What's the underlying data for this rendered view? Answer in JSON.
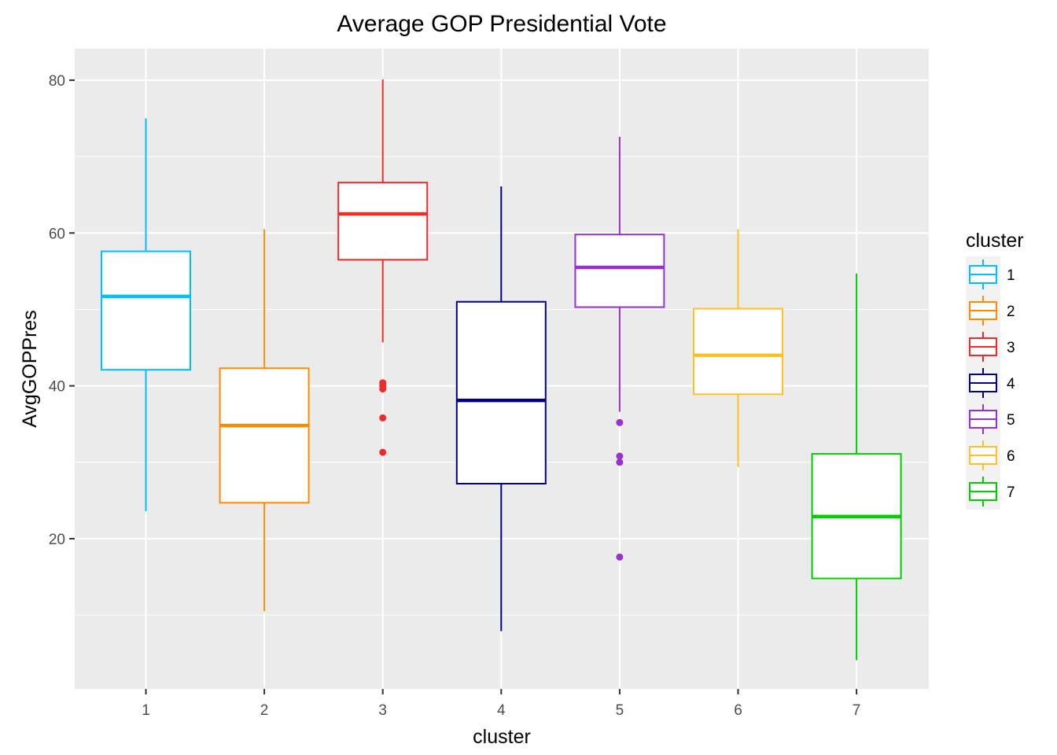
{
  "chart_data": {
    "type": "boxplot",
    "title": "Average GOP Presidential Vote",
    "xlabel": "cluster",
    "ylabel": "AvgGOPPres",
    "categories": [
      "1",
      "2",
      "3",
      "4",
      "5",
      "6",
      "7"
    ],
    "ylim": [
      0,
      80
    ],
    "y_ticks": [
      20,
      40,
      60,
      80
    ],
    "grid": true,
    "legend": {
      "title": "cluster",
      "position": "right",
      "entries": [
        "1",
        "2",
        "3",
        "4",
        "5",
        "6",
        "7"
      ]
    },
    "series": [
      {
        "name": "1",
        "color": "#00BFFF",
        "whisker_low": 23.6,
        "q1": 42.1,
        "median": 51.7,
        "q3": 57.6,
        "whisker_high": 75.0,
        "outliers": []
      },
      {
        "name": "2",
        "color": "#FF8C00",
        "whisker_low": 10.5,
        "q1": 24.7,
        "median": 34.8,
        "q3": 42.3,
        "whisker_high": 60.5,
        "outliers": []
      },
      {
        "name": "3",
        "color": "#EE2C2C",
        "whisker_low": 45.7,
        "q1": 56.5,
        "median": 62.5,
        "q3": 66.6,
        "whisker_high": 80.1,
        "outliers": [
          40.4,
          40.0,
          39.6,
          35.8,
          31.3
        ]
      },
      {
        "name": "4",
        "color": "#000080",
        "whisker_low": 7.9,
        "q1": 27.2,
        "median": 38.1,
        "q3": 51.0,
        "whisker_high": 66.1,
        "outliers": []
      },
      {
        "name": "5",
        "color": "#9932CC",
        "whisker_low": 36.6,
        "q1": 50.3,
        "median": 55.5,
        "q3": 59.8,
        "whisker_high": 72.6,
        "outliers": [
          35.2,
          30.8,
          30.0,
          17.6
        ]
      },
      {
        "name": "6",
        "color": "#FFC125",
        "whisker_low": 29.4,
        "q1": 38.9,
        "median": 44.0,
        "q3": 50.1,
        "whisker_high": 60.5,
        "outliers": []
      },
      {
        "name": "7",
        "color": "#00CD00",
        "whisker_low": 4.1,
        "q1": 14.8,
        "median": 22.9,
        "q3": 31.1,
        "whisker_high": 54.7,
        "outliers": []
      }
    ]
  }
}
